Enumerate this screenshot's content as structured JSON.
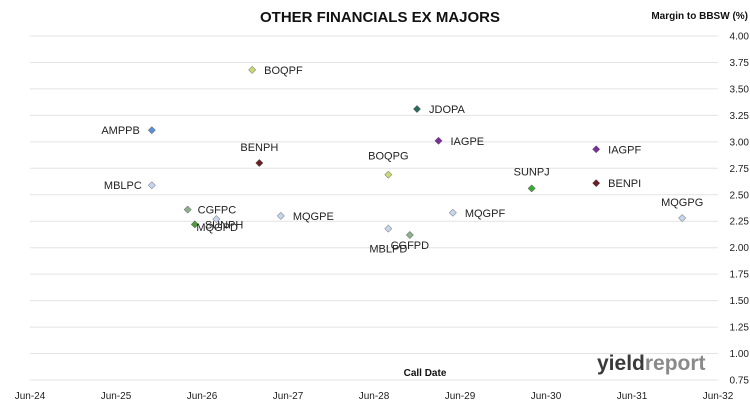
{
  "chart_data": {
    "type": "scatter",
    "title": "OTHER FINANCIALS EX MAJORS",
    "xlabel": "Call Date",
    "ylabel": "Margin to BBSW (%)",
    "x_ticks": [
      "Jun-24",
      "Jun-25",
      "Jun-26",
      "Jun-27",
      "Jun-28",
      "Jun-29",
      "Jun-30",
      "Jun-31",
      "Jun-32"
    ],
    "xlim": [
      "Jun-24",
      "Jun-32"
    ],
    "ylim": [
      0.75,
      4.0
    ],
    "y_ticks": [
      "0.75",
      "1.00",
      "1.25",
      "1.50",
      "1.75",
      "2.00",
      "2.25",
      "2.50",
      "2.75",
      "3.00",
      "3.25",
      "3.50",
      "3.75",
      "4.00"
    ],
    "y_axis_position": "right",
    "grid": "horizontal",
    "points": [
      {
        "label": "AMPPB",
        "x": "2025-11",
        "y": 3.11,
        "color": "#5b8fd6"
      },
      {
        "label": "MBLPC",
        "x": "2025-11",
        "y": 2.59,
        "color": "#c6d6ee"
      },
      {
        "label": "CGFPC",
        "x": "2026-04",
        "y": 2.36,
        "color": "#8cb08c"
      },
      {
        "label": "SUNPH",
        "x": "2026-05",
        "y": 2.22,
        "color": "#4f9a3a"
      },
      {
        "label": "MQGPD",
        "x": "2026-08",
        "y": 2.27,
        "color": "#c6d6ee"
      },
      {
        "label": "BOQPF",
        "x": "2027-01",
        "y": 3.68,
        "color": "#c9d977"
      },
      {
        "label": "BENPH",
        "x": "2027-02",
        "y": 2.8,
        "color": "#6b1f22"
      },
      {
        "label": "MQGPE",
        "x": "2027-05",
        "y": 2.3,
        "color": "#c6d6ee"
      },
      {
        "label": "MBLPD",
        "x": "2028-08",
        "y": 2.18,
        "color": "#c6d6ee"
      },
      {
        "label": "BOQPG",
        "x": "2028-08",
        "y": 2.69,
        "color": "#c9d977"
      },
      {
        "label": "CGFPD",
        "x": "2028-11",
        "y": 2.12,
        "color": "#8cb08c"
      },
      {
        "label": "JDOPA",
        "x": "2028-12",
        "y": 3.31,
        "color": "#2a6b5e"
      },
      {
        "label": "IAGPE",
        "x": "2029-03",
        "y": 3.01,
        "color": "#7a2f9a"
      },
      {
        "label": "MQGPF",
        "x": "2029-05",
        "y": 2.33,
        "color": "#c6d6ee"
      },
      {
        "label": "SUNPJ",
        "x": "2030-04",
        "y": 2.56,
        "color": "#3aaa35"
      },
      {
        "label": "IAGPF",
        "x": "2031-01",
        "y": 2.93,
        "color": "#7a2f9a"
      },
      {
        "label": "BENPI",
        "x": "2031-01",
        "y": 2.61,
        "color": "#6b1f22"
      },
      {
        "label": "MQGPG",
        "x": "2032-01",
        "y": 2.28,
        "color": "#c6d6ee"
      }
    ]
  },
  "watermark": {
    "text_part1": "yield",
    "text_part2": "report",
    "color1": "#3a3a3a",
    "color2": "#8a8a8a"
  }
}
